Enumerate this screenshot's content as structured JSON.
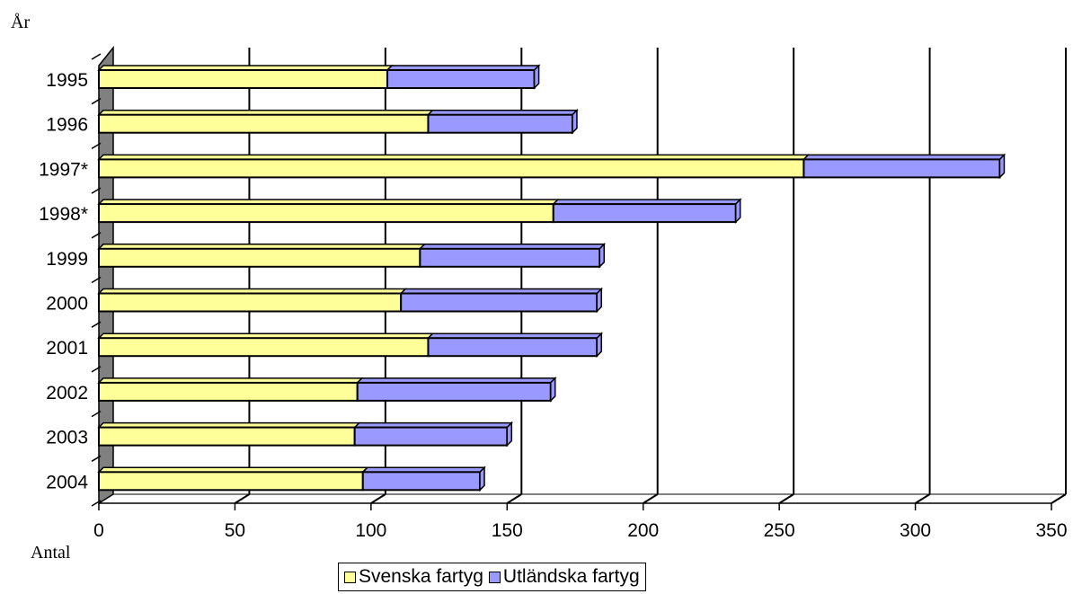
{
  "chart_data": {
    "type": "bar",
    "orientation": "horizontal",
    "stacked": true,
    "ylabel": "År",
    "xlabel": "Antal",
    "categories": [
      "1995",
      "1996",
      "1997*",
      "1998*",
      "1999",
      "2000",
      "2001",
      "2002",
      "2003",
      "2004"
    ],
    "series": [
      {
        "name": "Svenska fartyg",
        "color": "#ffff99",
        "values": [
          106,
          121,
          259,
          167,
          118,
          111,
          121,
          95,
          94,
          97
        ]
      },
      {
        "name": "Utländska fartyg",
        "color": "#9999ff",
        "values": [
          54,
          53,
          72,
          67,
          66,
          72,
          62,
          71,
          56,
          43
        ]
      }
    ],
    "xlim": [
      0,
      350
    ],
    "xticks": [
      "0",
      "50",
      "100",
      "150",
      "200",
      "250",
      "300",
      "350"
    ],
    "grid": true,
    "legend_position": "bottom"
  }
}
